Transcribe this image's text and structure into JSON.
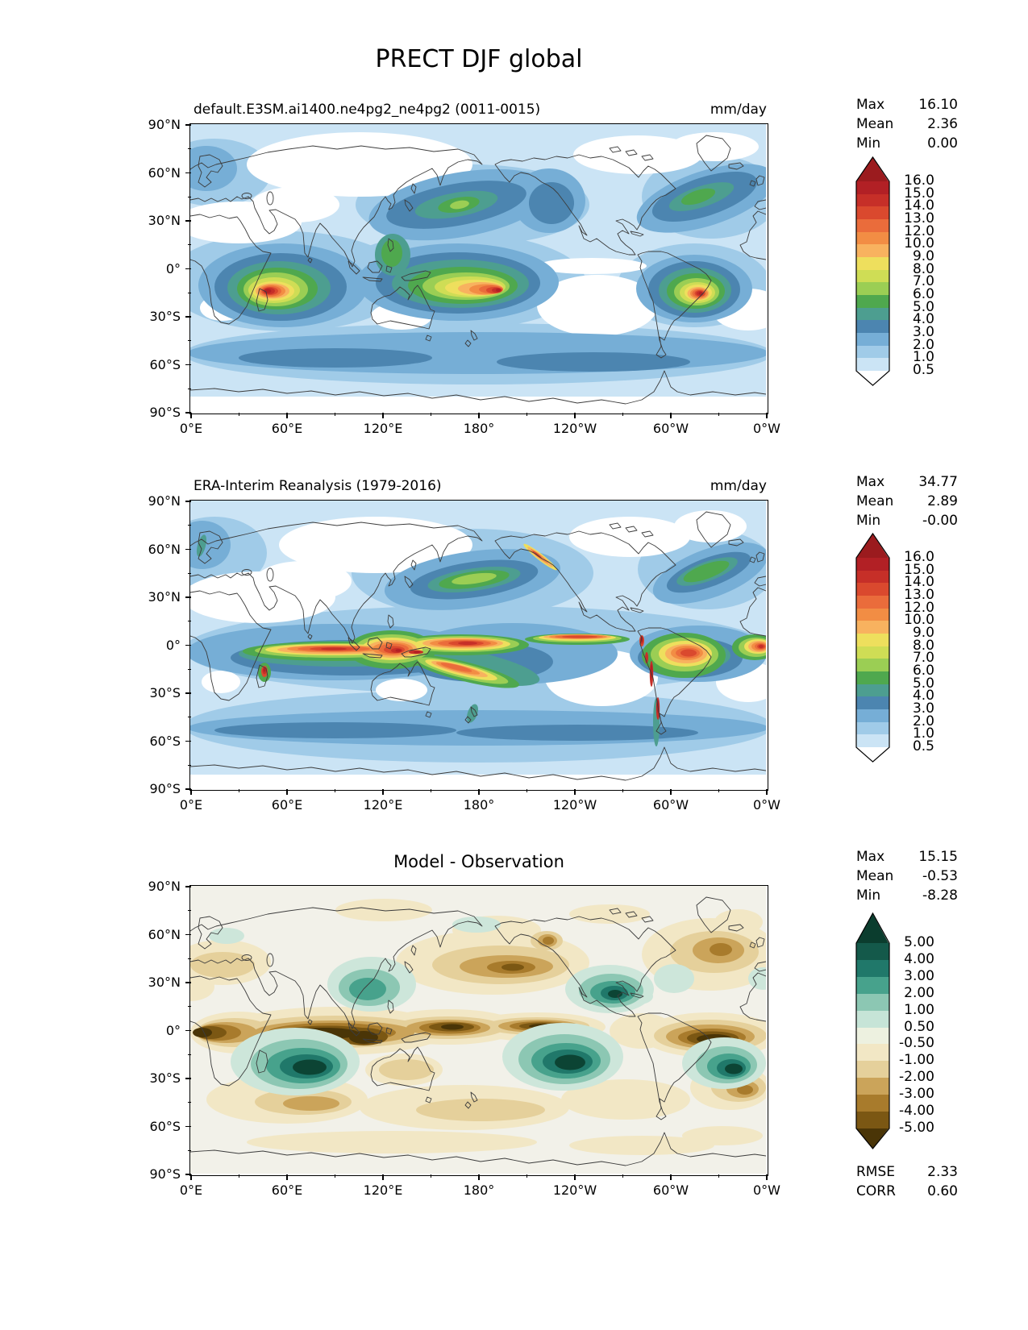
{
  "title": "PRECT DJF global",
  "panels": [
    {
      "id": "model",
      "subtitle": "default.E3SM.ai1400.ne4pg2_ne4pg2 (0011-0015)",
      "units": "mm/day",
      "stats": {
        "max_label": "Max",
        "max": "16.10",
        "mean_label": "Mean",
        "mean": "2.36",
        "min_label": "Min",
        "min": "0.00"
      }
    },
    {
      "id": "observation",
      "subtitle": "ERA-Interim Reanalysis (1979-2016)",
      "units": "mm/day",
      "stats": {
        "max_label": "Max",
        "max": "34.77",
        "mean_label": "Mean",
        "mean": "2.89",
        "min_label": "Min",
        "min": "-0.00"
      }
    },
    {
      "id": "difference",
      "subtitle": "Model - Observation",
      "units": "",
      "stats": {
        "max_label": "Max",
        "max": "15.15",
        "mean_label": "Mean",
        "mean": "-0.53",
        "min_label": "Min",
        "min": "-8.28"
      },
      "extra_stats": {
        "rmse_label": "RMSE",
        "rmse": "2.33",
        "corr_label": "CORR",
        "corr": "0.60"
      }
    }
  ],
  "axes": {
    "x_ticks": [
      "0°E",
      "60°E",
      "120°E",
      "180°",
      "120°W",
      "60°W",
      "0°W"
    ],
    "y_ticks": [
      "90°N",
      "60°N",
      "30°N",
      "0°",
      "30°S",
      "60°S",
      "90°S"
    ]
  },
  "colorbars": {
    "precip": {
      "arrow_top_color": "#9b1b1e",
      "arrow_bottom_color": "#ffffff",
      "labels": [
        "16.0",
        "15.0",
        "14.0",
        "13.0",
        "12.0",
        "10.0",
        "9.0",
        "8.0",
        "7.0",
        "6.0",
        "5.0",
        "4.0",
        "3.0",
        "2.0",
        "1.0",
        "0.5"
      ],
      "segment_colors": [
        "#b22025",
        "#c62f28",
        "#da492e",
        "#ea6c3b",
        "#f28d44",
        "#f8b25f",
        "#eedf5d",
        "#cfdd55",
        "#9bce54",
        "#4fa84e",
        "#4d9e90",
        "#4c85b0",
        "#76aed6",
        "#a0cbe8",
        "#cbe4f5"
      ]
    },
    "diff": {
      "arrow_top_color": "#0b3d2e",
      "arrow_bottom_color": "#4a3507",
      "labels": [
        "5.00",
        "4.00",
        "3.00",
        "2.00",
        "1.00",
        "0.50",
        "-0.50",
        "-1.00",
        "-2.00",
        "-3.00",
        "-4.00",
        "-5.00"
      ],
      "segment_colors": [
        "#14594a",
        "#20786a",
        "#47a28c",
        "#8cc7b3",
        "#c6e4d7",
        "#edf1e0",
        "#f2e7c5",
        "#e5d09b",
        "#cba45a",
        "#a87b2c",
        "#7b5713"
      ]
    }
  },
  "chart_data": [
    {
      "panel": "top",
      "type": "heatmap",
      "subtype": "filled-contour world map",
      "variable": "PRECT",
      "season": "DJF",
      "region": "global",
      "title": "default.E3SM.ai1400.ne4pg2_ne4pg2 (0011-0015)",
      "units": "mm/day",
      "x_range": [
        "0°E",
        "0°W (360°E)"
      ],
      "y_range": [
        "90°S",
        "90°N"
      ],
      "contour_levels": [
        0.5,
        1,
        2,
        3,
        4,
        5,
        6,
        7,
        8,
        9,
        10,
        12,
        13,
        14,
        15,
        16
      ],
      "colorbar_extend": "both",
      "palette_low_to_high": [
        "#ffffff",
        "#cbe4f5",
        "#a0cbe8",
        "#76aed6",
        "#4c85b0",
        "#4d9e90",
        "#4fa84e",
        "#9bce54",
        "#cfdd55",
        "#eedf5d",
        "#f8b25f",
        "#f28d44",
        "#ea6c3b",
        "#da492e",
        "#c62f28",
        "#b22025",
        "#9b1b1e"
      ],
      "stats": {
        "max": 16.1,
        "mean": 2.36,
        "min": 0.0
      },
      "notable_features": [
        "precipitation maxima >15 mm/day centered south of the equator over the SW Indian Ocean near Madagascar, the western/central tropical Pacific, and central South America",
        "storm-track bands of 4-7 mm/day across the NW Pacific and NW Atlantic with small green cores",
        "dry (<0.5 mm/day) Sahara/Arabia, central Asia/Siberia, subtropical SE Pacific and S Atlantic, central Australia"
      ]
    },
    {
      "panel": "middle",
      "type": "heatmap",
      "subtype": "filled-contour world map",
      "variable": "PRECT",
      "season": "DJF",
      "region": "global",
      "title": "ERA-Interim Reanalysis (1979-2016)",
      "units": "mm/day",
      "x_range": [
        "0°E",
        "0°W (360°E)"
      ],
      "y_range": [
        "90°S",
        "90°N"
      ],
      "contour_levels": [
        0.5,
        1,
        2,
        3,
        4,
        5,
        6,
        7,
        8,
        9,
        10,
        12,
        13,
        14,
        15,
        16
      ],
      "colorbar_extend": "both",
      "palette_low_to_high": [
        "#ffffff",
        "#cbe4f5",
        "#a0cbe8",
        "#76aed6",
        "#4c85b0",
        "#4d9e90",
        "#4fa84e",
        "#9bce54",
        "#cfdd55",
        "#eedf5d",
        "#f8b25f",
        "#f28d44",
        "#ea6c3b",
        "#da492e",
        "#c62f28",
        "#b22025",
        "#9b1b1e"
      ],
      "stats": {
        "max": 34.77,
        "mean": 2.89,
        "min": -0.0
      },
      "notable_features": [
        "narrow intense ITCZ (10-16+ mm/day) along the equator across the Indian Ocean, Maritime Continent and Pacific, with SPCZ diagonal band",
        "local red maxima over New Guinea, Madagascar, the Andes, Colombia coast and the NE Pacific/BC coastal mountains",
        "green storm tracks over the central N Pacific and N Atlantic, green strips on Norway, New Zealand and southern Chile coasts"
      ]
    },
    {
      "panel": "bottom",
      "type": "heatmap",
      "subtype": "filled-contour world map (difference)",
      "variable": "PRECT bias",
      "title": "Model - Observation",
      "units": "mm/day",
      "x_range": [
        "0°E",
        "0°W (360°E)"
      ],
      "y_range": [
        "90°S",
        "90°N"
      ],
      "contour_levels": [
        -5,
        -4,
        -3,
        -2,
        -1,
        -0.5,
        0.5,
        1,
        2,
        3,
        4,
        5
      ],
      "colorbar_extend": "both",
      "palette_low_to_high": [
        "#4a3507",
        "#7b5713",
        "#a87b2c",
        "#cba45a",
        "#e5d09b",
        "#f2e7c5",
        "#edf1e0",
        "#c6e4d7",
        "#8cc7b3",
        "#47a28c",
        "#20786a",
        "#14594a",
        "#0b3d2e"
      ],
      "stats": {
        "max": 15.15,
        "mean": -0.53,
        "min": -8.28,
        "rmse": 2.33,
        "corr": 0.6
      },
      "notable_features": [
        "strong dry bias (brown, < -5 mm/day) along the equator across Africa, the Indian Ocean, Maritime Continent, central Pacific and tropical South America/Atlantic",
        "strong wet bias (dark teal, > +5 mm/day) south of the equator over the SW Indian Ocean, central South Pacific and SE Brazil, plus Mexico/Caribbean and East Asia",
        "moderate dry bias over N Pacific and N Atlantic storm tracks; weak tan dry bias across southern mid-latitudes"
      ]
    }
  ]
}
